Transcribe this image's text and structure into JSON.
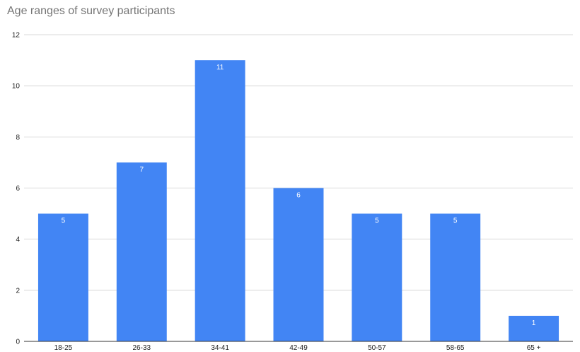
{
  "chart_data": {
    "type": "bar",
    "title": "Age ranges of survey participants",
    "xlabel": "",
    "ylabel": "",
    "categories": [
      "18-25",
      "26-33",
      "34-41",
      "42-49",
      "50-57",
      "58-65",
      "65 +"
    ],
    "values": [
      5,
      7,
      11,
      6,
      5,
      5,
      1
    ],
    "ylim": [
      0,
      12
    ],
    "yticks": [
      0,
      2,
      4,
      6,
      8,
      10,
      12
    ],
    "grid": true,
    "legend": "none",
    "bar_color": "#4285f4",
    "data_labels": true
  }
}
